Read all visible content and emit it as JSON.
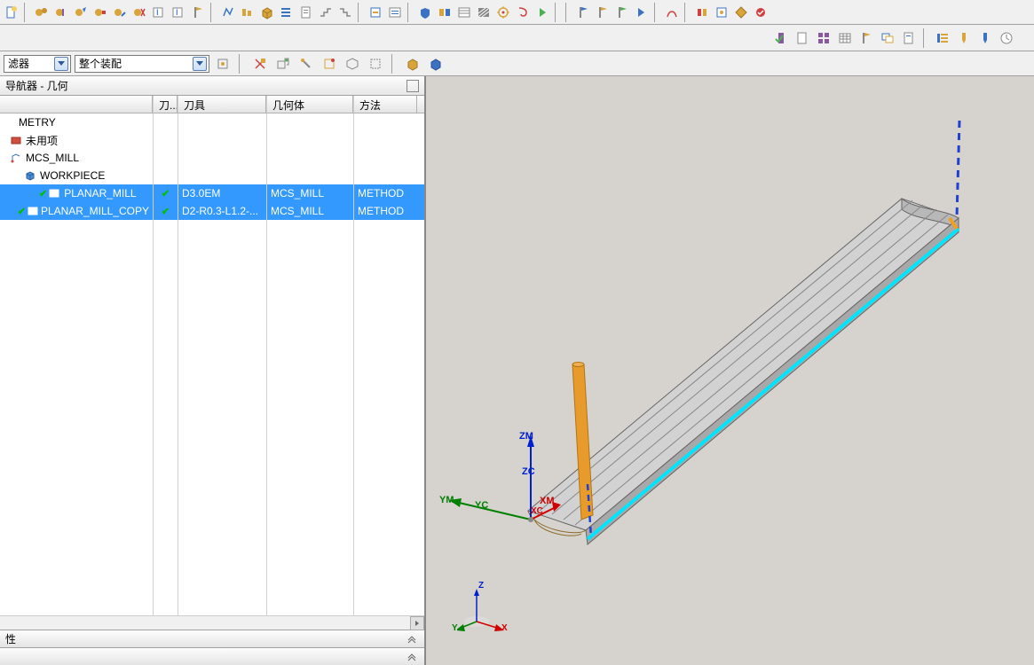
{
  "filter_bar": {
    "combo1_label": "滤器",
    "combo2_label": "整个装配"
  },
  "navigator": {
    "title": "导航器 - 几何",
    "columns": {
      "name": "",
      "status": "刀...",
      "tool": "刀具",
      "geometry": "几何体",
      "method": "方法"
    },
    "rows": [
      {
        "label": "METRY",
        "indent": 0,
        "icon": "none",
        "status": "",
        "tool": "",
        "geom": "",
        "method": "",
        "selected": false
      },
      {
        "label": "未用项",
        "indent": 8,
        "icon": "folder-red",
        "status": "",
        "tool": "",
        "geom": "",
        "method": "",
        "selected": false
      },
      {
        "label": "MCS_MILL",
        "indent": 8,
        "icon": "mcs",
        "status": "",
        "tool": "",
        "geom": "",
        "method": "",
        "selected": false
      },
      {
        "label": "WORKPIECE",
        "indent": 24,
        "icon": "cube-blue",
        "status": "",
        "tool": "",
        "geom": "",
        "method": "",
        "selected": false
      },
      {
        "label": "PLANAR_MILL",
        "indent": 40,
        "icon": "op-green",
        "status_check": true,
        "tool": "D3.0EM",
        "geom": "MCS_MILL",
        "method": "METHOD",
        "selected": true
      },
      {
        "label": "PLANAR_MILL_COPY",
        "indent": 40,
        "icon": "op-green",
        "status_check": true,
        "tool": "D2-R0.3-L1.2-...",
        "geom": "MCS_MILL",
        "method": "METHOD",
        "selected": true
      }
    ],
    "bottom_section1": "性",
    "bottom_section2": ""
  },
  "viewport": {
    "axes": {
      "zm": "ZM",
      "zc": "ZC",
      "ym": "YM",
      "yc": "YC",
      "xm": "XM",
      "xc": "XC",
      "mini_x": "X",
      "mini_y": "Y",
      "mini_z": "Z"
    },
    "colors": {
      "bg": "#d6d3ce",
      "part_face": "#c8c8c8",
      "part_edge": "#666666",
      "cyan": "#00e5ff",
      "tool_orange": "#e89a2a",
      "dash_blue": "#2040d0",
      "z_axis": "#0020d0",
      "y_axis": "#008000",
      "x_axis": "#d00000",
      "brown": "#8a6a2a"
    }
  },
  "toolbar_icon_colors": {
    "gold": "#d9a43a",
    "blue": "#3b72c4",
    "green": "#4caf50",
    "red": "#d04040",
    "gray": "#888888",
    "cyan": "#2aa0c4",
    "purple": "#8a5aa0"
  }
}
